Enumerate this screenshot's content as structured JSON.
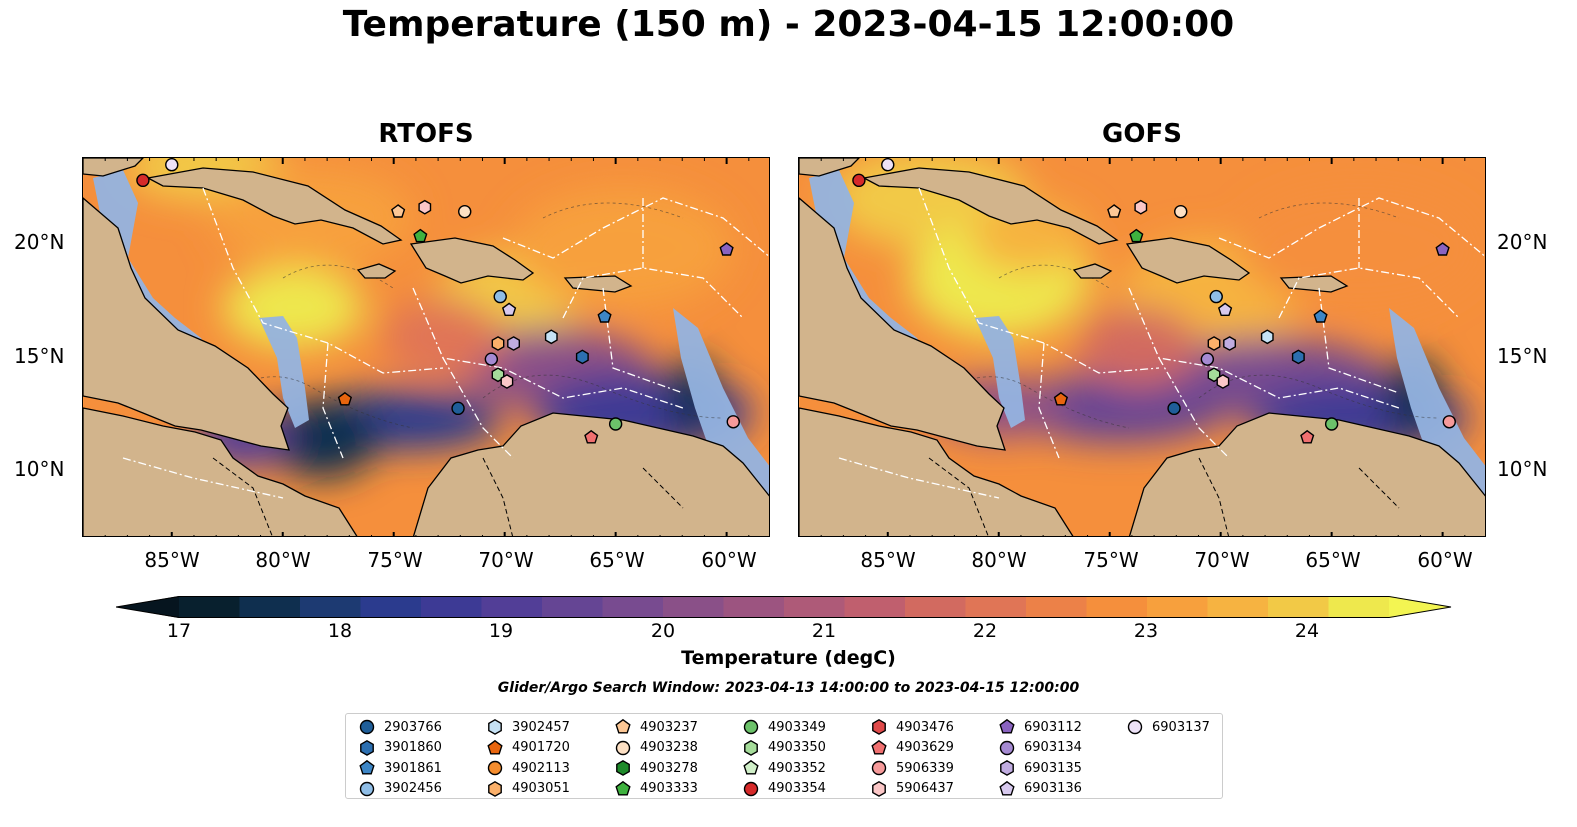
{
  "title": "Temperature (150 m) - 2023-04-15 12:00:00",
  "panels": [
    {
      "title": "RTOFS"
    },
    {
      "title": "GOFS"
    }
  ],
  "lon_ticks": [
    "85°W",
    "80°W",
    "75°W",
    "70°W",
    "65°W",
    "60°W"
  ],
  "lat_ticks": [
    "20°N",
    "15°N",
    "10°N"
  ],
  "colorbar": {
    "label": "Temperature (degC)",
    "ticks": [
      "17",
      "18",
      "19",
      "20",
      "21",
      "22",
      "23",
      "24"
    ],
    "colors": [
      "#08202e",
      "#0f2f4f",
      "#1d3a72",
      "#2b3b8e",
      "#3d3a95",
      "#523e97",
      "#654594",
      "#784b90",
      "#8a5088",
      "#9c5480",
      "#ae5a78",
      "#c05f6e",
      "#d26a60",
      "#e07556",
      "#ec8148",
      "#f58f3c",
      "#f7a03d",
      "#f6b341",
      "#f2c946",
      "#eee84d"
    ]
  },
  "search_window": "Glider/Argo Search Window: 2023-04-13 14:00:00 to 2023-04-15 12:00:00",
  "legend": [
    {
      "id": "2903766",
      "marker": "circle",
      "color": "#1f5e99"
    },
    {
      "id": "3901860",
      "marker": "hexagon",
      "color": "#2c6fb0"
    },
    {
      "id": "3901861",
      "marker": "pentagon",
      "color": "#3d86c6"
    },
    {
      "id": "3902456",
      "marker": "circle",
      "color": "#8fbde6"
    },
    {
      "id": "3902457",
      "marker": "hexagon",
      "color": "#c6e2f5"
    },
    {
      "id": "4901720",
      "marker": "pentagon",
      "color": "#e8650e"
    },
    {
      "id": "4902113",
      "marker": "circle",
      "color": "#f58d2e"
    },
    {
      "id": "4903051",
      "marker": "hexagon",
      "color": "#fbb06a"
    },
    {
      "id": "4903237",
      "marker": "pentagon",
      "color": "#fcc795"
    },
    {
      "id": "4903238",
      "marker": "circle",
      "color": "#fde0c4"
    },
    {
      "id": "4903278",
      "marker": "hexagon",
      "color": "#1e8a2a"
    },
    {
      "id": "4903333",
      "marker": "pentagon",
      "color": "#3fb23f"
    },
    {
      "id": "4903349",
      "marker": "circle",
      "color": "#6cc26a"
    },
    {
      "id": "4903350",
      "marker": "hexagon",
      "color": "#a5dc9a"
    },
    {
      "id": "4903352",
      "marker": "pentagon",
      "color": "#d0efc8"
    },
    {
      "id": "4903354",
      "marker": "circle",
      "color": "#d62a2a"
    },
    {
      "id": "4903476",
      "marker": "hexagon",
      "color": "#e04a4a"
    },
    {
      "id": "4903629",
      "marker": "pentagon",
      "color": "#f07070"
    },
    {
      "id": "5906339",
      "marker": "circle",
      "color": "#f69a9a"
    },
    {
      "id": "5906437",
      "marker": "hexagon",
      "color": "#fbc7c7"
    },
    {
      "id": "6903112",
      "marker": "pentagon",
      "color": "#8a63c0"
    },
    {
      "id": "6903134",
      "marker": "circle",
      "color": "#a58ad2"
    },
    {
      "id": "6903135",
      "marker": "hexagon",
      "color": "#c0ace0"
    },
    {
      "id": "6903136",
      "marker": "pentagon",
      "color": "#d7c9ee"
    },
    {
      "id": "6903137",
      "marker": "circle",
      "color": "#ede2f8"
    }
  ],
  "chart_data": {
    "type": "heatmap",
    "extent": {
      "lon": [
        -89,
        -58
      ],
      "lat": [
        7,
        24
      ]
    },
    "colorbar_range": [
      17,
      24.5
    ],
    "colorbar_extend": "both",
    "floats": [
      {
        "id": "4903354",
        "lon": -86.3,
        "lat": 23.0
      },
      {
        "id": "6903137",
        "lon": -85.0,
        "lat": 23.7
      },
      {
        "id": "4903237",
        "lon": -74.8,
        "lat": 21.6
      },
      {
        "id": "5906437",
        "lon": -73.6,
        "lat": 21.8
      },
      {
        "id": "4903333",
        "lon": -73.8,
        "lat": 20.5
      },
      {
        "id": "4903238",
        "lon": -71.8,
        "lat": 21.6
      },
      {
        "id": "6903112",
        "lon": -60.0,
        "lat": 19.9
      },
      {
        "id": "3902456",
        "lon": -70.2,
        "lat": 17.8
      },
      {
        "id": "6903136",
        "lon": -69.8,
        "lat": 17.2
      },
      {
        "id": "3901861",
        "lon": -65.5,
        "lat": 16.9
      },
      {
        "id": "3902457",
        "lon": -67.9,
        "lat": 16.0
      },
      {
        "id": "4903051",
        "lon": -70.3,
        "lat": 15.7
      },
      {
        "id": "6903135",
        "lon": -69.6,
        "lat": 15.7
      },
      {
        "id": "3901860",
        "lon": -66.5,
        "lat": 15.1
      },
      {
        "id": "6903134",
        "lon": -70.6,
        "lat": 15.0
      },
      {
        "id": "4903350",
        "lon": -70.3,
        "lat": 14.3
      },
      {
        "id": "5906437",
        "lon": -69.9,
        "lat": 14.0
      },
      {
        "id": "4901720",
        "lon": -77.2,
        "lat": 13.2
      },
      {
        "id": "2903766",
        "lon": -72.1,
        "lat": 12.8
      },
      {
        "id": "4903349",
        "lon": -65.0,
        "lat": 12.1
      },
      {
        "id": "4903629",
        "lon": -66.1,
        "lat": 11.5
      },
      {
        "id": "5906339",
        "lon": -59.7,
        "lat": 12.2
      }
    ]
  }
}
